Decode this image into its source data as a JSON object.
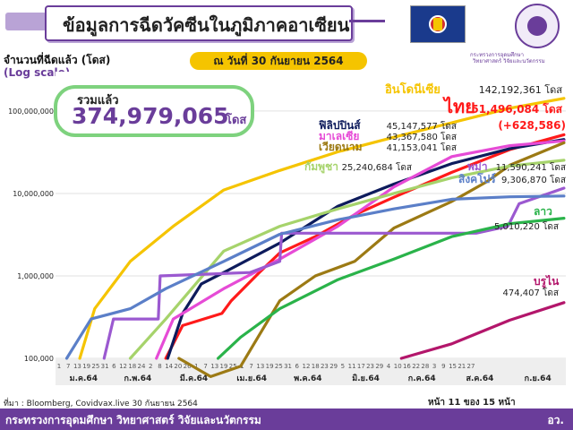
{
  "header": {
    "title": "ข้อมูลการฉีดวัคซีนในภูมิภาคอาเซียน",
    "logo_text_line1": "กระทรวงการอุดมศึกษา",
    "logo_text_line2": "วิทยาศาสตร์ วิจัยและนวัตกรรม"
  },
  "subtitle": "จำนวนที่ฉีดแล้ว (โดส)",
  "scale_note": "(Log scale)",
  "date_badge": "ณ วันที่ 30 กันยายน 2564",
  "total": {
    "label": "รวมแล้ว",
    "value": "374,979,065",
    "unit": "โดส"
  },
  "footer": {
    "source": "ที่มา : Bloomberg, Covidvax.live 30 กันยายน 2564",
    "page": "หน้า 11 ของ 15 หน้า",
    "org": "กระทรวงการอุดมศึกษา วิทยาศาสตร์ วิจัยและนวัตกรรม",
    "abbr": "อว."
  },
  "chart_data": {
    "type": "line",
    "title": "",
    "xlabel": "",
    "ylabel": "",
    "y_scale": "log",
    "ylim": [
      100000,
      300000000
    ],
    "y_ticks": [
      100000,
      1000000,
      10000000,
      100000000
    ],
    "y_tick_labels": [
      "100,000",
      "1,000,000",
      "10,000,000",
      "100,000,000"
    ],
    "x_range": [
      "2021-01-01",
      "2021-10-01"
    ],
    "x_tick_days": [
      "1",
      "7",
      "13",
      "19",
      "25",
      "31",
      "6",
      "12",
      "18",
      "24",
      "2",
      "8",
      "14",
      "20",
      "26",
      "1",
      "7",
      "13",
      "19",
      "25",
      "1",
      "7",
      "13",
      "19",
      "25",
      "31",
      "6",
      "12",
      "18",
      "23",
      "29",
      "5",
      "11",
      "17",
      "23",
      "29",
      "4",
      "10",
      "16",
      "22",
      "28",
      "3",
      "9",
      "15",
      "21",
      "27"
    ],
    "x_months": [
      "ม.ค.64",
      "ก.พ.64",
      "มี.ค.64",
      "เม.ย.64",
      "พ.ค.64",
      "มิ.ย.64",
      "ก.ค.64",
      "ส.ค.64",
      "ก.ย.64"
    ],
    "grid": true,
    "series": [
      {
        "name": "อินโดนีเซีย",
        "value_label": "142,192,361",
        "unit": "โดส",
        "color": "#f5c400",
        "final": 142192361,
        "points": [
          [
            "2021-01-14",
            100000
          ],
          [
            "2021-01-22",
            400000
          ],
          [
            "2021-02-10",
            1500000
          ],
          [
            "2021-03-05",
            4000000
          ],
          [
            "2021-04-01",
            11000000
          ],
          [
            "2021-05-01",
            19000000
          ],
          [
            "2021-06-01",
            32000000
          ],
          [
            "2021-07-01",
            48000000
          ],
          [
            "2021-08-01",
            72000000
          ],
          [
            "2021-09-01",
            108000000
          ],
          [
            "2021-09-30",
            142192361
          ]
        ]
      },
      {
        "name": "ไทย",
        "value_label": "51,496,084",
        "unit": "โดส",
        "extra": "(+628,586)",
        "color": "#ff1a1a",
        "final": 51496084,
        "points": [
          [
            "2021-03-01",
            100000
          ],
          [
            "2021-03-10",
            250000
          ],
          [
            "2021-03-31",
            350000
          ],
          [
            "2021-04-05",
            500000
          ],
          [
            "2021-04-20",
            1100000
          ],
          [
            "2021-05-01",
            1900000
          ],
          [
            "2021-05-20",
            3000000
          ],
          [
            "2021-06-10",
            5500000
          ],
          [
            "2021-07-01",
            9000000
          ],
          [
            "2021-08-01",
            18000000
          ],
          [
            "2021-09-01",
            34000000
          ],
          [
            "2021-09-30",
            51496084
          ]
        ]
      },
      {
        "name": "ฟิลิปปินส์",
        "value_label": "45,147,577",
        "unit": "โดส",
        "color": "#0d1b5c",
        "final": 45147577,
        "points": [
          [
            "2021-03-02",
            100000
          ],
          [
            "2021-03-10",
            350000
          ],
          [
            "2021-03-20",
            800000
          ],
          [
            "2021-04-01",
            1100000
          ],
          [
            "2021-05-01",
            2500000
          ],
          [
            "2021-06-01",
            7000000
          ],
          [
            "2021-07-01",
            13000000
          ],
          [
            "2021-08-01",
            23000000
          ],
          [
            "2021-09-01",
            35000000
          ],
          [
            "2021-09-30",
            45147577
          ]
        ]
      },
      {
        "name": "มาเลเซีย",
        "value_label": "43,367,580",
        "unit": "โดส",
        "color": "#e64bd6",
        "final": 43367580,
        "points": [
          [
            "2021-02-24",
            100000
          ],
          [
            "2021-03-05",
            300000
          ],
          [
            "2021-04-01",
            700000
          ],
          [
            "2021-05-01",
            1600000
          ],
          [
            "2021-06-01",
            4000000
          ],
          [
            "2021-06-20",
            8000000
          ],
          [
            "2021-07-01",
            12000000
          ],
          [
            "2021-08-01",
            28000000
          ],
          [
            "2021-09-01",
            38000000
          ],
          [
            "2021-09-30",
            43367580
          ]
        ]
      },
      {
        "name": "เวียดนาม",
        "value_label": "41,153,041",
        "unit": "โดส",
        "color": "#9c7a14",
        "final": 41153041,
        "points": [
          [
            "2021-03-08",
            100000
          ],
          [
            "2021-03-25",
            60000
          ],
          [
            "2021-04-10",
            80000
          ],
          [
            "2021-05-01",
            500000
          ],
          [
            "2021-05-20",
            1000000
          ],
          [
            "2021-06-10",
            1500000
          ],
          [
            "2021-07-01",
            3800000
          ],
          [
            "2021-08-01",
            8000000
          ],
          [
            "2021-08-20",
            14000000
          ],
          [
            "2021-09-01",
            22000000
          ],
          [
            "2021-09-30",
            41153041
          ]
        ]
      },
      {
        "name": "กัมพูชา",
        "value_label": "25,240,684",
        "unit": "โดส",
        "color": "#a6d36b",
        "final": 25240684,
        "points": [
          [
            "2021-02-10",
            100000
          ],
          [
            "2021-03-01",
            300000
          ],
          [
            "2021-04-01",
            2000000
          ],
          [
            "2021-05-01",
            4000000
          ],
          [
            "2021-06-01",
            6500000
          ],
          [
            "2021-07-01",
            10000000
          ],
          [
            "2021-08-01",
            15500000
          ],
          [
            "2021-09-01",
            21500000
          ],
          [
            "2021-09-30",
            25240684
          ]
        ]
      },
      {
        "name": "พม่า",
        "value_label": "11,590,241",
        "unit": "โดส",
        "color": "#9b59d0",
        "final": 11590241,
        "points": [
          [
            "2021-01-27",
            100000
          ],
          [
            "2021-02-01",
            300000
          ],
          [
            "2021-02-25",
            300000
          ],
          [
            "2021-02-26",
            1000000
          ],
          [
            "2021-04-15",
            1100000
          ],
          [
            "2021-05-01",
            1500000
          ],
          [
            "2021-05-02",
            3300000
          ],
          [
            "2021-08-14",
            3300000
          ],
          [
            "2021-08-31",
            4000000
          ],
          [
            "2021-09-06",
            7500000
          ],
          [
            "2021-09-30",
            11590241
          ]
        ]
      },
      {
        "name": "สิงคโปร์",
        "value_label": "9,306,870",
        "unit": "โดส",
        "color": "#5b7fc8",
        "final": 9306870,
        "points": [
          [
            "2021-01-07",
            100000
          ],
          [
            "2021-01-20",
            300000
          ],
          [
            "2021-02-10",
            400000
          ],
          [
            "2021-03-01",
            700000
          ],
          [
            "2021-04-01",
            1500000
          ],
          [
            "2021-05-01",
            3200000
          ],
          [
            "2021-06-01",
            4800000
          ],
          [
            "2021-07-01",
            6500000
          ],
          [
            "2021-08-01",
            8500000
          ],
          [
            "2021-09-01",
            9100000
          ],
          [
            "2021-09-30",
            9306870
          ]
        ]
      },
      {
        "name": "ลาว",
        "value_label": "5,010,220",
        "unit": "โดส",
        "color": "#2ab34a",
        "final": 5010220,
        "points": [
          [
            "2021-03-29",
            100000
          ],
          [
            "2021-04-10",
            180000
          ],
          [
            "2021-05-01",
            400000
          ],
          [
            "2021-06-01",
            900000
          ],
          [
            "2021-07-01",
            1600000
          ],
          [
            "2021-08-01",
            3000000
          ],
          [
            "2021-09-01",
            4300000
          ],
          [
            "2021-09-30",
            5010220
          ]
        ]
      },
      {
        "name": "บรูไน",
        "value_label": "474,407",
        "unit": "โดส",
        "color": "#b3166b",
        "final": 474407,
        "points": [
          [
            "2021-07-05",
            100000
          ],
          [
            "2021-08-01",
            150000
          ],
          [
            "2021-09-01",
            290000
          ],
          [
            "2021-09-30",
            474407
          ]
        ]
      }
    ]
  }
}
